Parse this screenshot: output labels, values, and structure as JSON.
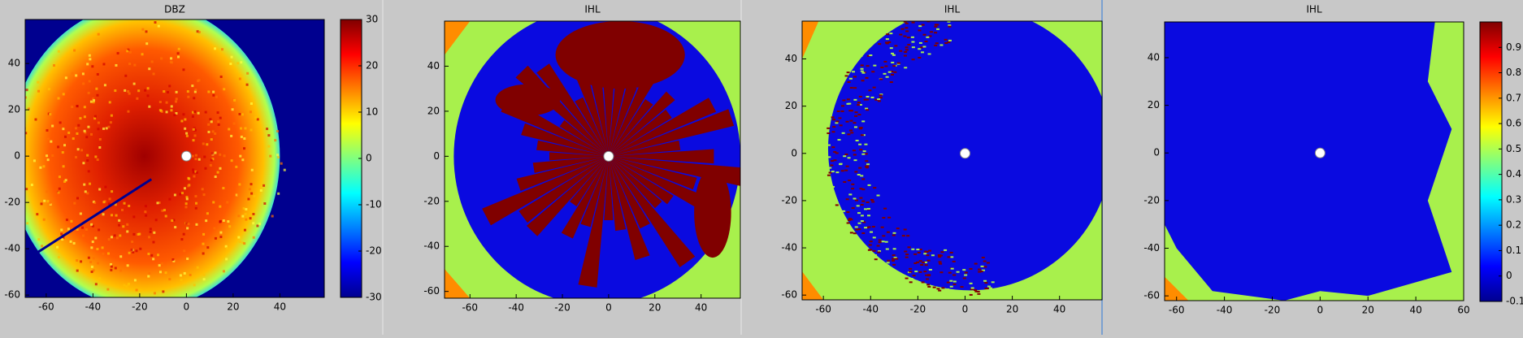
{
  "chart_data": [
    {
      "type": "heatmap",
      "title": "DBZ",
      "xlim": [
        -69,
        59
      ],
      "ylim": [
        -61,
        59
      ],
      "xticks": [
        -60,
        -40,
        -20,
        0,
        20,
        40
      ],
      "yticks": [
        -60,
        -40,
        -20,
        0,
        20,
        40
      ],
      "colormap": "jet",
      "clim": [
        -30,
        30
      ],
      "cticks": [
        -30,
        -20,
        -10,
        0,
        10,
        20,
        30
      ]
    },
    {
      "type": "heatmap",
      "title": "IHL",
      "xlim": [
        -71,
        57
      ],
      "ylim": [
        -63,
        60
      ],
      "xticks": [
        -60,
        -40,
        -20,
        0,
        20,
        40
      ],
      "yticks": [
        -60,
        -40,
        -20,
        0,
        20,
        40
      ],
      "colormap": "jet"
    },
    {
      "type": "heatmap",
      "title": "IHL",
      "xlim": [
        -69,
        58
      ],
      "ylim": [
        -62,
        56
      ],
      "xticks": [
        -60,
        -40,
        -20,
        0,
        20,
        40
      ],
      "yticks": [
        -60,
        -40,
        -20,
        0,
        20,
        40
      ],
      "colormap": "jet"
    },
    {
      "type": "heatmap",
      "title": "IHL",
      "xlim": [
        -65,
        60
      ],
      "ylim": [
        -62,
        55
      ],
      "xticks": [
        -60,
        -40,
        -20,
        0,
        20,
        40,
        60
      ],
      "yticks": [
        -60,
        -40,
        -20,
        0,
        20,
        40
      ],
      "colormap": "jet",
      "clim": [
        -0.1,
        1
      ],
      "cticks": [
        -0.1,
        0,
        0.1,
        0.2,
        0.3,
        0.4,
        0.5,
        0.6,
        0.7,
        0.8,
        0.9
      ]
    }
  ]
}
